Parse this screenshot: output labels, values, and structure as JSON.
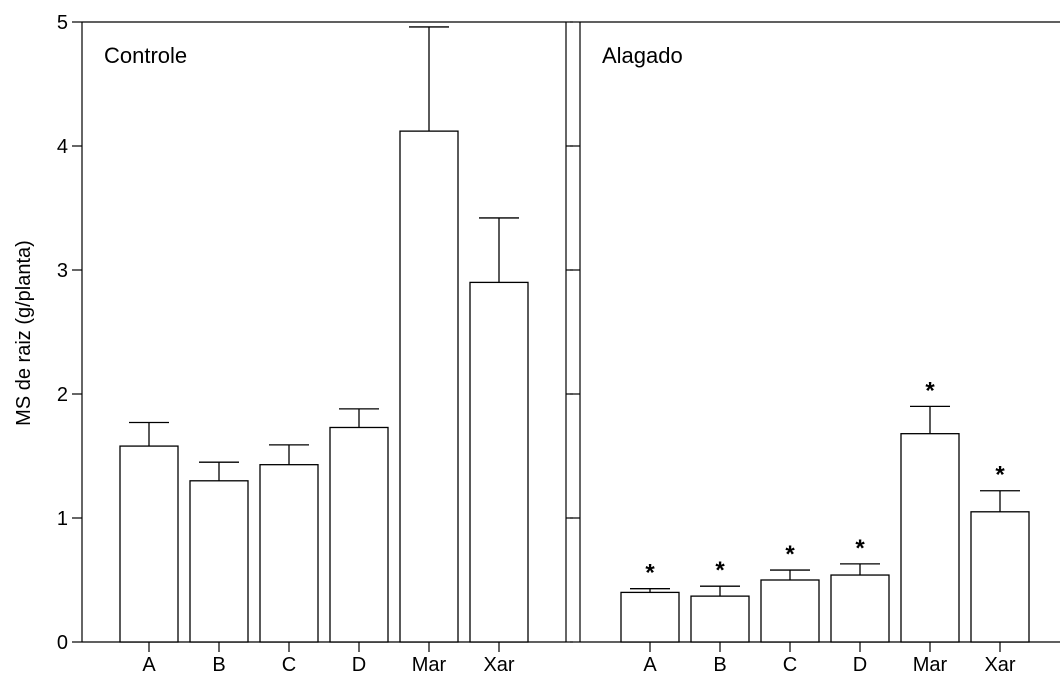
{
  "chart_data": {
    "type": "bar",
    "ylabel": "MS de raiz (g/planta)",
    "ylim": [
      0,
      5
    ],
    "yticks": [
      "0",
      "1",
      "2",
      "3",
      "4",
      "5"
    ],
    "categories": [
      "A",
      "B",
      "C",
      "D",
      "Mar",
      "Xar"
    ],
    "panels": [
      {
        "label": "Controle",
        "values": [
          1.58,
          1.3,
          1.43,
          1.73,
          4.12,
          2.9
        ],
        "errors": [
          0.19,
          0.15,
          0.16,
          0.15,
          0.84,
          0.52
        ],
        "significant": [
          false,
          false,
          false,
          false,
          false,
          false
        ]
      },
      {
        "label": "Alagado",
        "values": [
          0.4,
          0.37,
          0.5,
          0.54,
          1.68,
          1.05
        ],
        "errors": [
          0.03,
          0.08,
          0.08,
          0.09,
          0.22,
          0.17
        ],
        "significant": [
          true,
          true,
          true,
          true,
          true,
          true
        ]
      }
    ],
    "significance_marker": "*",
    "grid": false,
    "legend": "none"
  }
}
